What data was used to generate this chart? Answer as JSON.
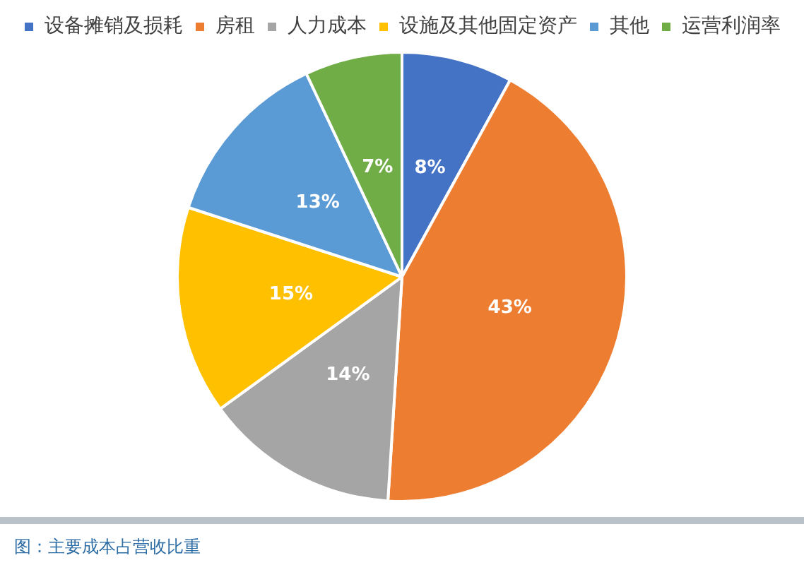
{
  "chart_data": {
    "type": "pie",
    "categories": [
      "设备摊销及损耗",
      "房租",
      "人力成本",
      "设施及其他固定资产",
      "其他",
      "运营利润率"
    ],
    "values": [
      8,
      43,
      14,
      15,
      13,
      7
    ],
    "colors": [
      "#4472c4",
      "#ed7d31",
      "#a5a5a5",
      "#ffc000",
      "#5b9bd5",
      "#70ad47"
    ],
    "value_labels": [
      "8%",
      "43%",
      "14%",
      "15%",
      "13%",
      "7%"
    ],
    "legend": "top",
    "annotations": [
      "图：主要成本占营收比重"
    ]
  }
}
